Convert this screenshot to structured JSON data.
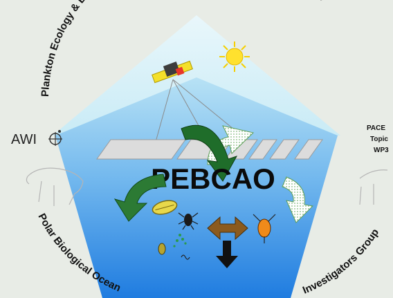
{
  "logo": {
    "title_arc": "Plankton Ecology & Biogeochemistry in a Changing Arctic Ocean (PEBCAO)",
    "center_label": "PEBCAO",
    "bottom_left_arc": "Polar Biological Ocean",
    "bottom_right_arc": "Investigators Group",
    "awi_label": "AWI",
    "side_text": [
      "PACE",
      "Topic",
      "WP3"
    ]
  },
  "colors": {
    "background": "#e8ece6",
    "sky": "#d6f2f8",
    "ocean_top": "#9fd4ef",
    "ocean_bottom": "#2b86e0",
    "arrow_green": "#1f6d2a",
    "sun": "#ffe12e",
    "satellite": "#f4e02a"
  }
}
